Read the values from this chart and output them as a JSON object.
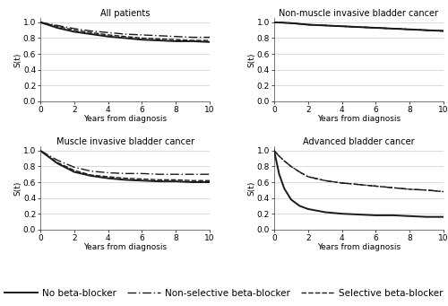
{
  "titles": [
    "All patients",
    "Non-muscle invasive bladder cancer",
    "Muscle invasive bladder cancer",
    "Advanced bladder cancer"
  ],
  "xlabel": "Years from diagnosis",
  "ylabel": "S(t)",
  "xlim": [
    0,
    10
  ],
  "ylim": [
    0.0,
    1.05
  ],
  "xticks": [
    0,
    2,
    4,
    6,
    8,
    10
  ],
  "yticks": [
    0.0,
    0.2,
    0.4,
    0.6,
    0.8,
    1.0
  ],
  "all_patients": {
    "no_bb": [
      [
        0,
        1,
        2,
        3,
        4,
        5,
        6,
        7,
        8,
        9,
        10
      ],
      [
        1.0,
        0.93,
        0.88,
        0.85,
        0.82,
        0.8,
        0.78,
        0.77,
        0.76,
        0.76,
        0.75
      ]
    ],
    "non_sel": [
      [
        0,
        1,
        2,
        3,
        4,
        5,
        6,
        7,
        8,
        9,
        10
      ],
      [
        1.0,
        0.96,
        0.92,
        0.89,
        0.87,
        0.85,
        0.84,
        0.83,
        0.82,
        0.81,
        0.81
      ]
    ],
    "sel": [
      [
        0,
        1,
        2,
        3,
        4,
        5,
        6,
        7,
        8,
        9,
        10
      ],
      [
        1.0,
        0.95,
        0.9,
        0.87,
        0.84,
        0.82,
        0.8,
        0.79,
        0.78,
        0.77,
        0.77
      ]
    ]
  },
  "non_muscle": {
    "no_bb": [
      [
        0,
        1,
        2,
        3,
        4,
        5,
        6,
        7,
        8,
        9,
        10
      ],
      [
        1.0,
        0.99,
        0.97,
        0.96,
        0.95,
        0.94,
        0.93,
        0.92,
        0.91,
        0.9,
        0.89
      ]
    ],
    "non_sel": [
      [
        0,
        1,
        2,
        3,
        4,
        5,
        6,
        7,
        8,
        9,
        10
      ],
      [
        1.0,
        0.99,
        0.97,
        0.96,
        0.95,
        0.94,
        0.93,
        0.92,
        0.91,
        0.9,
        0.89
      ]
    ],
    "sel": [
      [
        0,
        1,
        2,
        3,
        4,
        5,
        6,
        7,
        8,
        9,
        10
      ],
      [
        1.0,
        0.99,
        0.97,
        0.96,
        0.95,
        0.94,
        0.93,
        0.92,
        0.91,
        0.9,
        0.89
      ]
    ]
  },
  "muscle": {
    "no_bb": [
      [
        0,
        1,
        2,
        3,
        4,
        5,
        6,
        7,
        8,
        9,
        10
      ],
      [
        1.0,
        0.84,
        0.73,
        0.68,
        0.65,
        0.63,
        0.62,
        0.61,
        0.61,
        0.6,
        0.6
      ]
    ],
    "non_sel": [
      [
        0,
        1,
        2,
        3,
        4,
        5,
        6,
        7,
        8,
        9,
        10
      ],
      [
        1.0,
        0.88,
        0.79,
        0.74,
        0.72,
        0.71,
        0.71,
        0.7,
        0.7,
        0.7,
        0.7
      ]
    ],
    "sel": [
      [
        0,
        1,
        2,
        3,
        4,
        5,
        6,
        7,
        8,
        9,
        10
      ],
      [
        1.0,
        0.85,
        0.75,
        0.69,
        0.67,
        0.65,
        0.64,
        0.63,
        0.63,
        0.62,
        0.62
      ]
    ]
  },
  "advanced": {
    "no_bb": [
      [
        0,
        0.3,
        0.6,
        1,
        1.5,
        2,
        3,
        4,
        5,
        6,
        7,
        8,
        9,
        10
      ],
      [
        1.0,
        0.7,
        0.52,
        0.38,
        0.3,
        0.26,
        0.22,
        0.2,
        0.19,
        0.18,
        0.18,
        0.17,
        0.16,
        0.16
      ]
    ],
    "non_sel": [
      [
        0,
        0.3,
        0.6,
        1,
        1.5,
        2,
        3,
        4,
        5,
        6,
        7,
        8,
        9,
        10
      ],
      [
        1.0,
        0.93,
        0.87,
        0.8,
        0.73,
        0.67,
        0.62,
        0.59,
        0.57,
        0.55,
        0.53,
        0.51,
        0.5,
        0.48
      ]
    ],
    "sel": [
      [
        0,
        0.3,
        0.6,
        1,
        1.5,
        2,
        3,
        4,
        5,
        6,
        7,
        8,
        9,
        10
      ],
      [
        1.0,
        0.93,
        0.87,
        0.8,
        0.73,
        0.67,
        0.62,
        0.59,
        0.57,
        0.55,
        0.53,
        0.51,
        0.5,
        0.48
      ]
    ]
  },
  "line_color": "#1a1a1a",
  "background_color": "#ffffff",
  "grid_color": "#cccccc",
  "legend_labels": [
    "No beta-blocker",
    "Non-selective beta-blocker",
    "Selective beta-blocker"
  ],
  "title_fontsize": 7,
  "axis_fontsize": 6.5,
  "tick_fontsize": 6.5,
  "legend_fontsize": 7.5
}
